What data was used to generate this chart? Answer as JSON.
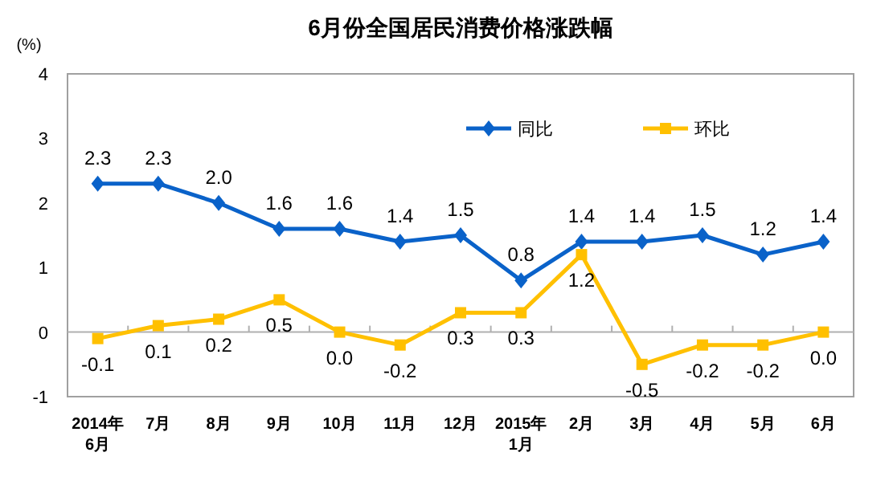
{
  "chart_data": {
    "type": "line",
    "title": "6月份全国居民消费价格涨跌幅",
    "ylabel": "(%)",
    "categories": [
      "2014年\n6月",
      "7月",
      "8月",
      "9月",
      "10月",
      "11月",
      "12月",
      "2015年\n1月",
      "2月",
      "3月",
      "4月",
      "5月",
      "6月"
    ],
    "series": [
      {
        "name": "同比",
        "color": "#0a62c9",
        "marker": "diamond",
        "values": [
          2.3,
          2.3,
          2.0,
          1.6,
          1.6,
          1.4,
          1.5,
          0.8,
          1.4,
          1.4,
          1.5,
          1.2,
          1.4
        ],
        "value_labels": [
          "2.3",
          "2.3",
          "2.0",
          "1.6",
          "1.6",
          "1.4",
          "1.5",
          "0.8",
          "1.4",
          "1.4",
          "1.5",
          "1.2",
          "1.4"
        ]
      },
      {
        "name": "环比",
        "color": "#ffc000",
        "marker": "square",
        "values": [
          -0.1,
          0.1,
          0.2,
          0.5,
          0.0,
          -0.2,
          0.3,
          0.3,
          1.2,
          -0.5,
          -0.2,
          -0.2,
          0.0
        ],
        "value_labels": [
          "-0.1",
          "0.1",
          "0.2",
          "0.5",
          "0.0",
          "-0.2",
          "0.3",
          "0.3",
          "1.2",
          "-0.5",
          "-0.2",
          "-0.2",
          "0.0"
        ]
      }
    ],
    "ylim": [
      -1,
      4
    ],
    "yticks": [
      -1,
      0,
      1,
      2,
      3,
      4
    ],
    "grid": false,
    "legend": "top right",
    "ref_lines": [
      {
        "axis": "y",
        "value": 0,
        "color": "#b0b0b0"
      }
    ]
  }
}
